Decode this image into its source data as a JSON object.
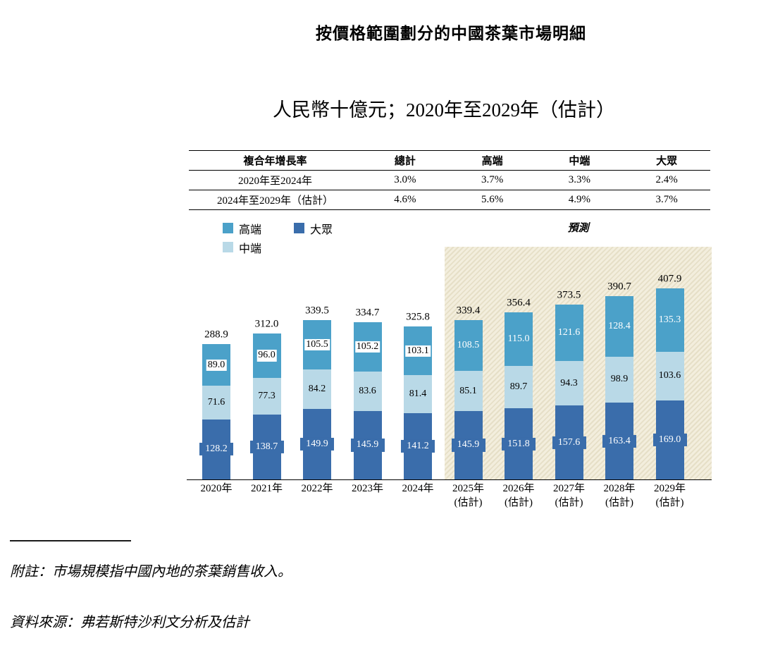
{
  "page_title": "按價格範圍劃分的中國茶葉市場明細",
  "subtitle": "人民幣十億元；2020年至2029年（估計）",
  "cagr_table": {
    "headers": [
      "複合年增長率",
      "總計",
      "高端",
      "中端",
      "大眾"
    ],
    "rows": [
      {
        "label": "2020年至2024年",
        "values": [
          "3.0%",
          "3.7%",
          "3.3%",
          "2.4%"
        ]
      },
      {
        "label": "2024年至2029年（估計）",
        "values": [
          "4.6%",
          "5.6%",
          "4.9%",
          "3.7%"
        ]
      }
    ]
  },
  "legend": {
    "items": [
      {
        "label": "高端",
        "key": "high",
        "color": "#4ba1c9"
      },
      {
        "label": "大眾",
        "key": "mass",
        "color": "#3a6dab"
      },
      {
        "label": "中端",
        "key": "mid",
        "color": "#b9d9e7"
      }
    ]
  },
  "forecast_label": "預測",
  "chart_data": {
    "type": "bar",
    "stacked": true,
    "title": "按價格範圍劃分的中國茶葉市場明細",
    "unit": "人民幣十億元",
    "ylim": [
      0,
      430
    ],
    "grid": false,
    "legend_position": "top-left",
    "categories": [
      {
        "label": "2020年"
      },
      {
        "label": "2021年"
      },
      {
        "label": "2022年"
      },
      {
        "label": "2023年"
      },
      {
        "label": "2024年"
      },
      {
        "label": "2025年",
        "sub": "(估計)"
      },
      {
        "label": "2026年",
        "sub": "(估計)"
      },
      {
        "label": "2027年",
        "sub": "(估計)"
      },
      {
        "label": "2028年",
        "sub": "(估計)"
      },
      {
        "label": "2029年",
        "sub": "(估計)"
      }
    ],
    "series": [
      {
        "name": "高端",
        "key": "high",
        "color": "#4ba1c9",
        "values": [
          89.0,
          96.0,
          105.5,
          105.2,
          103.1,
          108.5,
          115.0,
          121.6,
          128.4,
          135.3
        ]
      },
      {
        "name": "中端",
        "key": "mid",
        "color": "#b9d9e7",
        "values": [
          71.6,
          77.3,
          84.2,
          83.6,
          81.4,
          85.1,
          89.7,
          94.3,
          98.9,
          103.6
        ]
      },
      {
        "name": "大眾",
        "key": "mass",
        "color": "#3a6dab",
        "values": [
          128.2,
          138.7,
          149.9,
          145.9,
          141.2,
          145.9,
          151.8,
          157.6,
          163.4,
          169.0
        ]
      }
    ],
    "totals": [
      288.9,
      312.0,
      339.5,
      334.7,
      325.8,
      339.4,
      356.4,
      373.5,
      390.7,
      407.9
    ],
    "forecast_from_index": 5
  },
  "footnotes": {
    "note": "附註：市場規模指中國內地的茶葉銷售收入。",
    "source": "資料來源：弗若斯特沙利文分析及估計"
  }
}
